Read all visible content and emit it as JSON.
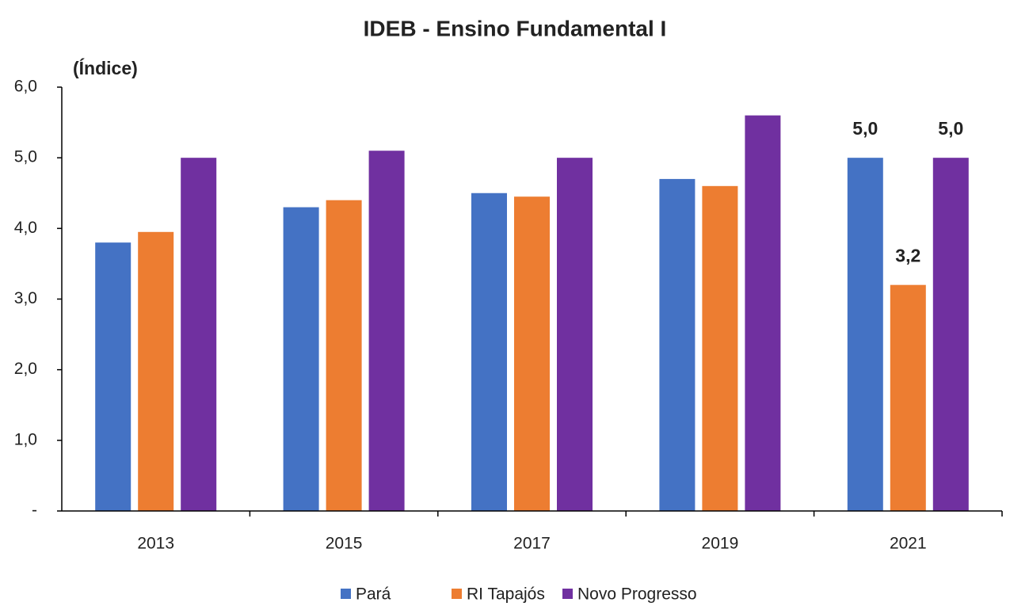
{
  "chart_data": {
    "type": "bar",
    "title": "IDEB - Ensino Fundamental I",
    "y_label": "(Índice)",
    "categories": [
      "2013",
      "2015",
      "2017",
      "2019",
      "2021"
    ],
    "series": [
      {
        "name": "Pará",
        "color": "#4472c4",
        "values": [
          3.8,
          4.3,
          4.5,
          4.7,
          5.0
        ],
        "value_labels": [
          null,
          null,
          null,
          null,
          "5,0"
        ]
      },
      {
        "name": "RI Tapajós",
        "color": "#ed7d31",
        "values": [
          3.95,
          4.4,
          4.45,
          4.6,
          3.2
        ],
        "value_labels": [
          null,
          null,
          null,
          null,
          "3,2"
        ]
      },
      {
        "name": "Novo Progresso",
        "color": "#7030a0",
        "values": [
          5.0,
          5.1,
          5.0,
          5.6,
          5.0
        ],
        "value_labels": [
          null,
          null,
          null,
          null,
          "5,0"
        ]
      }
    ],
    "ylim": [
      0,
      6
    ],
    "yticks": [
      {
        "value": 0,
        "label": "-"
      },
      {
        "value": 1,
        "label": "1,0"
      },
      {
        "value": 2,
        "label": "2,0"
      },
      {
        "value": 3,
        "label": "3,0"
      },
      {
        "value": 4,
        "label": "4,0"
      },
      {
        "value": 5,
        "label": "5,0"
      },
      {
        "value": 6,
        "label": "6,0"
      }
    ],
    "legend": "bottom"
  }
}
